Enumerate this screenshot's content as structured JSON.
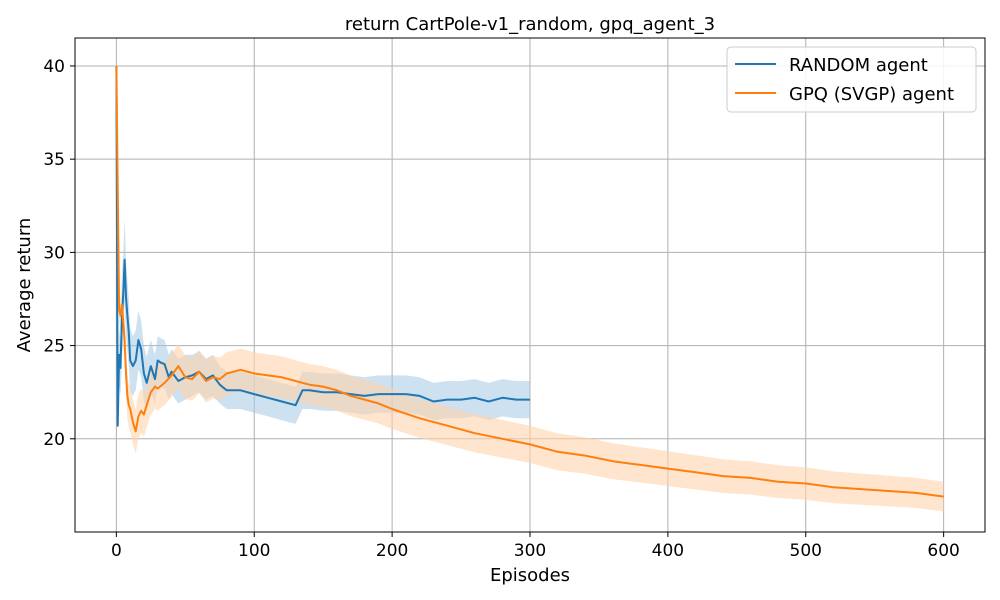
{
  "chart_data": {
    "type": "line",
    "title": "return CartPole-v1_random, gpq_agent_3",
    "xlabel": "Episodes",
    "ylabel": "Average return",
    "xlim": [
      -30,
      630
    ],
    "ylim": [
      15,
      41.5
    ],
    "xticks": [
      0,
      100,
      200,
      300,
      400,
      500,
      600
    ],
    "yticks": [
      20,
      25,
      30,
      35,
      40
    ],
    "grid": true,
    "legend_position": "top-right",
    "series": [
      {
        "name": "RANDOM agent",
        "color": "#1f77b4",
        "band_color": "#a6c8e6",
        "x": [
          0,
          1,
          2,
          3,
          4,
          5,
          6,
          7,
          8,
          9,
          10,
          12,
          14,
          16,
          18,
          20,
          22,
          25,
          28,
          30,
          32,
          35,
          38,
          40,
          45,
          50,
          55,
          60,
          65,
          70,
          75,
          80,
          90,
          100,
          110,
          120,
          130,
          135,
          140,
          150,
          160,
          170,
          180,
          190,
          200,
          210,
          220,
          230,
          240,
          250,
          260,
          270,
          280,
          290,
          300
        ],
        "y": [
          40.0,
          20.7,
          24.5,
          23.8,
          26.5,
          27.8,
          29.6,
          27.6,
          26.6,
          25.7,
          24.2,
          23.9,
          24.2,
          25.3,
          24.8,
          23.5,
          23.0,
          23.9,
          23.2,
          24.2,
          24.1,
          24.0,
          23.3,
          23.6,
          23.1,
          23.3,
          23.4,
          23.6,
          23.2,
          23.4,
          22.9,
          22.6,
          22.6,
          22.4,
          22.2,
          22.0,
          21.8,
          22.6,
          22.6,
          22.5,
          22.5,
          22.4,
          22.3,
          22.4,
          22.4,
          22.4,
          22.3,
          22.0,
          22.1,
          22.1,
          22.2,
          22.0,
          22.2,
          22.1,
          22.1
        ],
        "band": [
          0,
          0,
          1.5,
          1.5,
          2.4,
          2.2,
          2.2,
          2.0,
          1.9,
          1.8,
          1.7,
          1.6,
          1.6,
          1.6,
          1.5,
          1.5,
          1.4,
          1.4,
          1.3,
          1.3,
          1.3,
          1.3,
          1.2,
          1.2,
          1.2,
          1.2,
          1.1,
          1.1,
          1.1,
          1.1,
          1.0,
          1.0,
          1.0,
          1.0,
          1.0,
          1.0,
          1.0,
          1.0,
          1.0,
          1.0,
          1.0,
          1.0,
          1.0,
          1.0,
          1.0,
          1.0,
          1.0,
          1.0,
          1.0,
          1.0,
          1.0,
          1.0,
          1.0,
          1.0,
          1.0
        ]
      },
      {
        "name": "GPQ (SVGP) agent",
        "color": "#ff7f0e",
        "band_color": "#ffd3ad",
        "x": [
          0,
          1,
          2,
          3,
          4,
          5,
          6,
          7,
          8,
          9,
          10,
          12,
          14,
          16,
          18,
          20,
          22,
          25,
          28,
          30,
          35,
          40,
          45,
          50,
          55,
          60,
          65,
          70,
          75,
          80,
          85,
          90,
          100,
          110,
          120,
          130,
          140,
          150,
          160,
          170,
          180,
          190,
          200,
          220,
          240,
          260,
          280,
          300,
          320,
          340,
          360,
          380,
          400,
          420,
          440,
          460,
          480,
          500,
          520,
          540,
          560,
          580,
          600
        ],
        "y": [
          40.0,
          33.5,
          27.0,
          26.6,
          27.2,
          26.2,
          25.3,
          23.5,
          22.3,
          21.8,
          21.6,
          20.9,
          20.4,
          21.2,
          21.5,
          21.3,
          21.8,
          22.5,
          22.8,
          22.7,
          23.0,
          23.4,
          23.9,
          23.3,
          23.2,
          23.6,
          23.1,
          23.3,
          23.2,
          23.5,
          23.6,
          23.7,
          23.5,
          23.4,
          23.3,
          23.1,
          22.9,
          22.8,
          22.6,
          22.3,
          22.1,
          21.9,
          21.6,
          21.1,
          20.7,
          20.3,
          20.0,
          19.7,
          19.3,
          19.1,
          18.8,
          18.6,
          18.4,
          18.2,
          18.0,
          17.9,
          17.7,
          17.6,
          17.4,
          17.3,
          17.2,
          17.1,
          16.9
        ]
      }
    ]
  },
  "legend": {
    "items": [
      "RANDOM agent",
      "GPQ (SVGP) agent"
    ]
  }
}
